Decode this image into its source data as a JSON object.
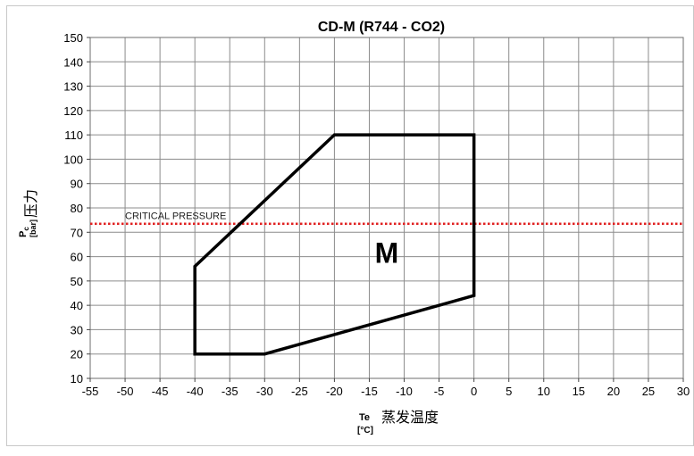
{
  "chart_data": {
    "type": "line",
    "title": "CD-M (R744 - CO2)",
    "xlabel": "Te",
    "xlabel_unit": "[°C]",
    "xlabel_cn": "蒸发温度",
    "ylabel": "P",
    "ylabel_sub": "c",
    "ylabel_unit": "[bar]",
    "ylabel_cn": "压力",
    "xlim": [
      -55,
      30
    ],
    "ylim": [
      10,
      150
    ],
    "x_ticks": [
      -55,
      -50,
      -45,
      -40,
      -35,
      -30,
      -25,
      -20,
      -15,
      -10,
      -5,
      0,
      5,
      10,
      15,
      20,
      25,
      30
    ],
    "y_ticks": [
      10,
      20,
      30,
      40,
      50,
      60,
      70,
      80,
      90,
      100,
      110,
      120,
      130,
      140,
      150
    ],
    "grid": true,
    "series": [
      {
        "name": "",
        "color": "#000000",
        "closed": true,
        "points": [
          [
            -40,
            20
          ],
          [
            -30,
            20
          ],
          [
            0,
            44
          ],
          [
            0,
            110
          ],
          [
            -20,
            110
          ],
          [
            -40,
            56
          ],
          [
            -40,
            20
          ]
        ]
      }
    ],
    "reference_lines": [
      {
        "label": "CRITICAL PRESSURE",
        "y": 73.5,
        "color": "#e02020",
        "style": "dotted"
      }
    ],
    "annotations": [
      {
        "text": "M",
        "x": -12.5,
        "y": 63
      }
    ]
  }
}
